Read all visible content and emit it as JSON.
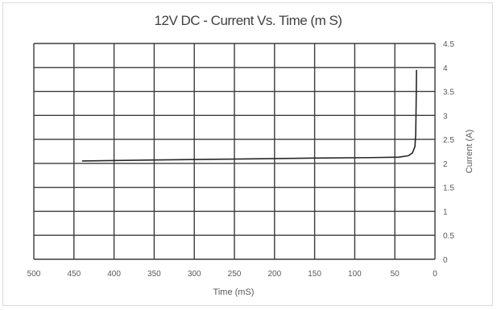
{
  "chart_data": {
    "type": "line",
    "title": "12V DC - Current Vs. Time (m S)",
    "xlabel": "Time (mS)",
    "ylabel": "Current (A)",
    "xlim": [
      500,
      0
    ],
    "ylim": [
      0,
      4.5
    ],
    "x_ticks": [
      "500",
      "450",
      "400",
      "350",
      "300",
      "250",
      "200",
      "150",
      "100",
      "50",
      "0"
    ],
    "y_ticks": [
      "0",
      "0.5",
      "1",
      "1.5",
      "2",
      "2.5",
      "3",
      "3.5",
      "4",
      "4.5"
    ],
    "x_reversed": true,
    "y_axis_side": "right",
    "grid": true,
    "series": [
      {
        "color": "#262626",
        "points": [
          {
            "x": 440,
            "y": 2.05
          },
          {
            "x": 350,
            "y": 2.07
          },
          {
            "x": 250,
            "y": 2.09
          },
          {
            "x": 150,
            "y": 2.11
          },
          {
            "x": 80,
            "y": 2.12
          },
          {
            "x": 45,
            "y": 2.13
          },
          {
            "x": 33,
            "y": 2.16
          },
          {
            "x": 28,
            "y": 2.22
          },
          {
            "x": 25,
            "y": 2.35
          },
          {
            "x": 24,
            "y": 2.6
          },
          {
            "x": 23.5,
            "y": 3.2
          },
          {
            "x": 23,
            "y": 3.95
          }
        ]
      }
    ]
  }
}
